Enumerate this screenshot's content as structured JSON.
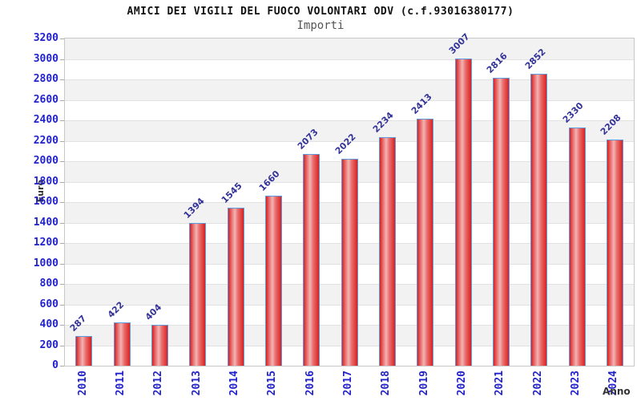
{
  "chart_data": {
    "type": "bar",
    "title": "AMICI DEI VIGILI DEL FUOCO VOLONTARI ODV (c.f.93016380177)",
    "subtitle": "Importi",
    "xlabel": "Anno",
    "ylabel": "Euro",
    "categories": [
      "2010",
      "2011",
      "2012",
      "2013",
      "2014",
      "2015",
      "2016",
      "2017",
      "2018",
      "2019",
      "2020",
      "2021",
      "2022",
      "2023",
      "2024"
    ],
    "values": [
      287,
      422,
      404,
      1394,
      1545,
      1660,
      2073,
      2022,
      2234,
      2413,
      3007,
      2816,
      2852,
      2330,
      2208
    ],
    "ylim": [
      0,
      3200
    ],
    "ytick_step": 200,
    "grid": "banded-horizontal",
    "legend": "none",
    "colors": {
      "bar_red": "#d92121",
      "bar_highlight": "#f2b4b4",
      "bar_border": "#5f9bdc",
      "axis_label_blue": "#2222cc",
      "value_label_navy": "#333399",
      "band_gray": "#f2f2f2",
      "band_white": "#ffffff",
      "frame_gray": "#c8c8c8",
      "subtitle_gray": "#555555",
      "axis_title_gray": "#333333"
    }
  }
}
